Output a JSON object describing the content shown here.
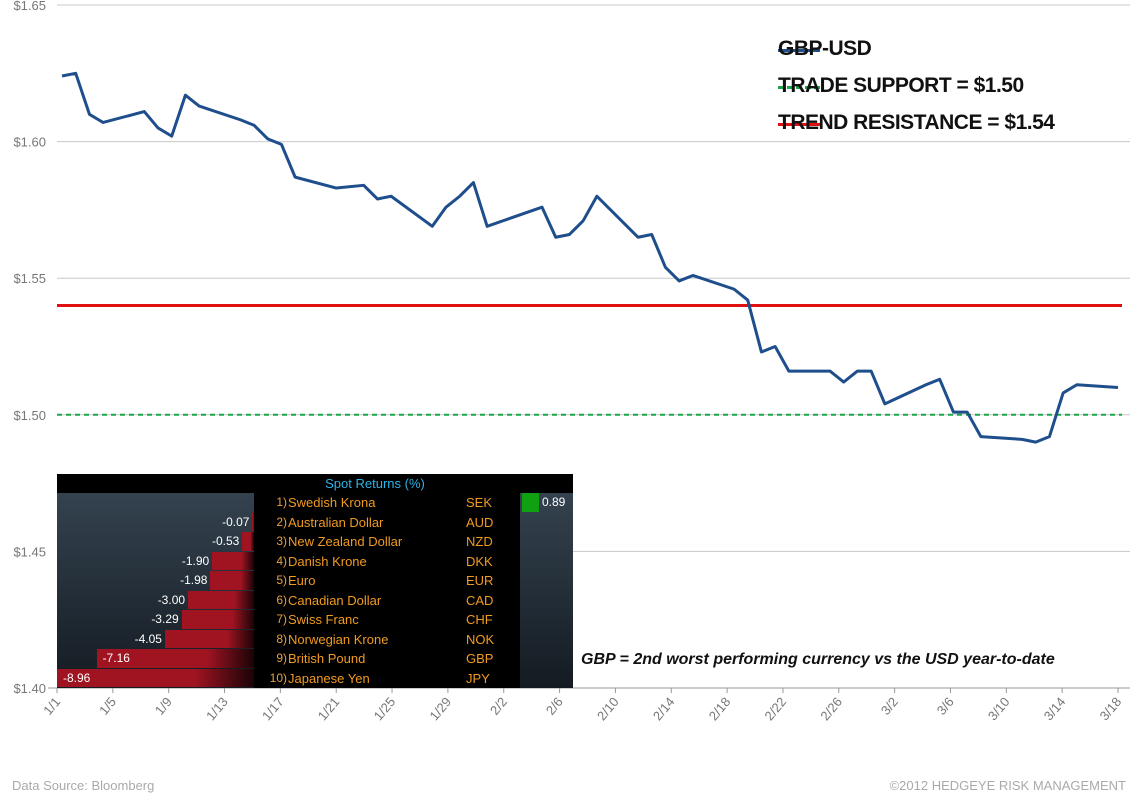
{
  "chart_data": {
    "type": "line",
    "title": "",
    "xlabel": "",
    "ylabel": "",
    "ylim": [
      1.4,
      1.65
    ],
    "yticks": [
      "$1.40",
      "$1.45",
      "$1.50",
      "$1.55",
      "$1.60",
      "$1.65"
    ],
    "ytick_values": [
      1.4,
      1.45,
      1.5,
      1.55,
      1.6,
      1.65
    ],
    "xlim_days": [
      0,
      77
    ],
    "xticks": [
      "1/1",
      "1/5",
      "1/9",
      "1/13",
      "1/17",
      "1/21",
      "1/25",
      "1/29",
      "2/2",
      "2/6",
      "2/10",
      "2/14",
      "2/18",
      "2/22",
      "2/26",
      "3/2",
      "3/6",
      "3/10",
      "3/14",
      "3/18"
    ],
    "grid": true,
    "series": [
      {
        "name": "GBP-USD",
        "color": "#1f4e8c",
        "x_days": [
          0,
          1,
          2,
          3,
          6,
          7,
          8,
          9,
          10,
          13,
          14,
          15,
          16,
          17,
          20,
          22,
          23,
          24,
          27,
          28,
          29,
          30,
          31,
          35,
          36,
          37,
          38,
          39,
          42,
          43,
          44,
          45,
          46,
          49,
          50,
          51,
          52,
          53,
          56,
          57,
          58,
          59,
          60,
          63,
          64,
          65,
          66,
          67,
          70,
          71,
          72,
          73,
          74,
          77
        ],
        "values": [
          1.624,
          1.625,
          1.61,
          1.607,
          1.611,
          1.605,
          1.602,
          1.617,
          1.613,
          1.608,
          1.606,
          1.601,
          1.599,
          1.587,
          1.583,
          1.584,
          1.579,
          1.58,
          1.569,
          1.576,
          1.58,
          1.585,
          1.569,
          1.576,
          1.565,
          1.566,
          1.571,
          1.58,
          1.565,
          1.566,
          1.554,
          1.549,
          1.551,
          1.546,
          1.542,
          1.523,
          1.525,
          1.516,
          1.516,
          1.512,
          1.516,
          1.516,
          1.504,
          1.511,
          1.513,
          1.501,
          1.501,
          1.492,
          1.491,
          1.49,
          1.492,
          1.508,
          1.511,
          1.51
        ]
      },
      {
        "name": "TRADE SUPPORT = $1.50",
        "color": "#1aa64a",
        "style": "dashed",
        "value": 1.5
      },
      {
        "name": "TREND RESISTANCE = $1.54",
        "color": "#e01010",
        "style": "solid",
        "value": 1.54
      }
    ],
    "legend_position": "top-right"
  },
  "inset": {
    "title": "Spot Returns  (%)",
    "rows": [
      {
        "rank": "1)",
        "name": "Swedish Krona",
        "code": "SEK",
        "value": 0.89,
        "label": "0.89"
      },
      {
        "rank": "2)",
        "name": "Australian Dollar",
        "code": "AUD",
        "value": -0.07,
        "label": "-0.07"
      },
      {
        "rank": "3)",
        "name": "New Zealand Dollar",
        "code": "NZD",
        "value": -0.53,
        "label": "-0.53"
      },
      {
        "rank": "4)",
        "name": "Danish Krone",
        "code": "DKK",
        "value": -1.9,
        "label": "-1.90"
      },
      {
        "rank": "5)",
        "name": "Euro",
        "code": "EUR",
        "value": -1.98,
        "label": "-1.98"
      },
      {
        "rank": "6)",
        "name": "Canadian Dollar",
        "code": "CAD",
        "value": -3.0,
        "label": "-3.00"
      },
      {
        "rank": "7)",
        "name": "Swiss Franc",
        "code": "CHF",
        "value": -3.29,
        "label": "-3.29"
      },
      {
        "rank": "8)",
        "name": "Norwegian Krone",
        "code": "NOK",
        "value": -4.05,
        "label": "-4.05"
      },
      {
        "rank": "9)",
        "name": "British Pound",
        "code": "GBP",
        "value": -7.16,
        "label": "-7.16"
      },
      {
        "rank": "10)",
        "name": "Japanese Yen",
        "code": "JPY",
        "value": -8.96,
        "label": "-8.96"
      }
    ]
  },
  "caption": "GBP = 2nd worst performing currency vs the USD year-to-date",
  "footer": {
    "source": "Data Source: Bloomberg",
    "copyright": "©2012 HEDGEYE RISK MANAGEMENT"
  }
}
